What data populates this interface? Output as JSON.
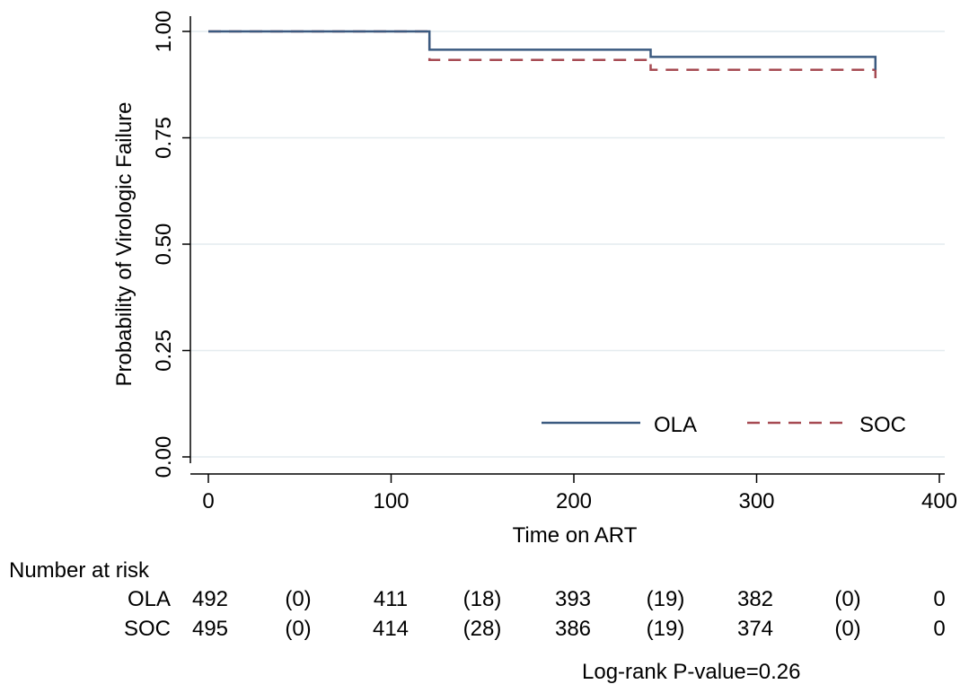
{
  "chart_data": {
    "type": "line",
    "subtype": "kaplan-meier step",
    "xlabel": "Time on ART",
    "ylabel": "Probability of Virologic Failure",
    "xlim": [
      0,
      400
    ],
    "ylim": [
      0,
      1
    ],
    "xticks": [
      {
        "value": 0,
        "label": "0"
      },
      {
        "value": 100,
        "label": "100"
      },
      {
        "value": 200,
        "label": "200"
      },
      {
        "value": 300,
        "label": "300"
      },
      {
        "value": 400,
        "label": "400"
      }
    ],
    "yticks": [
      {
        "value": 0,
        "label": "0.00"
      },
      {
        "value": 0.25,
        "label": "0.25"
      },
      {
        "value": 0.5,
        "label": "0.50"
      },
      {
        "value": 0.75,
        "label": "0.75"
      },
      {
        "value": 1,
        "label": "1.00"
      }
    ],
    "grid": true,
    "legend_position": "bottom-right inside plot",
    "series": [
      {
        "name": "OLA",
        "color": "#3b5a80",
        "dash": "solid",
        "x": [
          0,
          121,
          121,
          242,
          242,
          365,
          365
        ],
        "y": [
          1.0,
          1.0,
          0.957,
          0.957,
          0.94,
          0.94,
          0.91
        ]
      },
      {
        "name": "SOC",
        "color": "#a64a52",
        "dash": "dashed",
        "x": [
          0,
          121,
          121,
          242,
          242,
          365,
          365
        ],
        "y": [
          1.0,
          1.0,
          0.933,
          0.933,
          0.91,
          0.91,
          0.89
        ]
      }
    ],
    "risk_table": {
      "title": "Number at risk",
      "rows": [
        {
          "label": "OLA",
          "values": [
            "492",
            "(0)",
            "411",
            "(18)",
            "393",
            "(19)",
            "382",
            "(0)",
            "0"
          ]
        },
        {
          "label": "SOC",
          "values": [
            "495",
            "(0)",
            "414",
            "(28)",
            "386",
            "(19)",
            "374",
            "(0)",
            "0"
          ]
        }
      ]
    },
    "annotation": "Log-rank P-value=0.26"
  }
}
